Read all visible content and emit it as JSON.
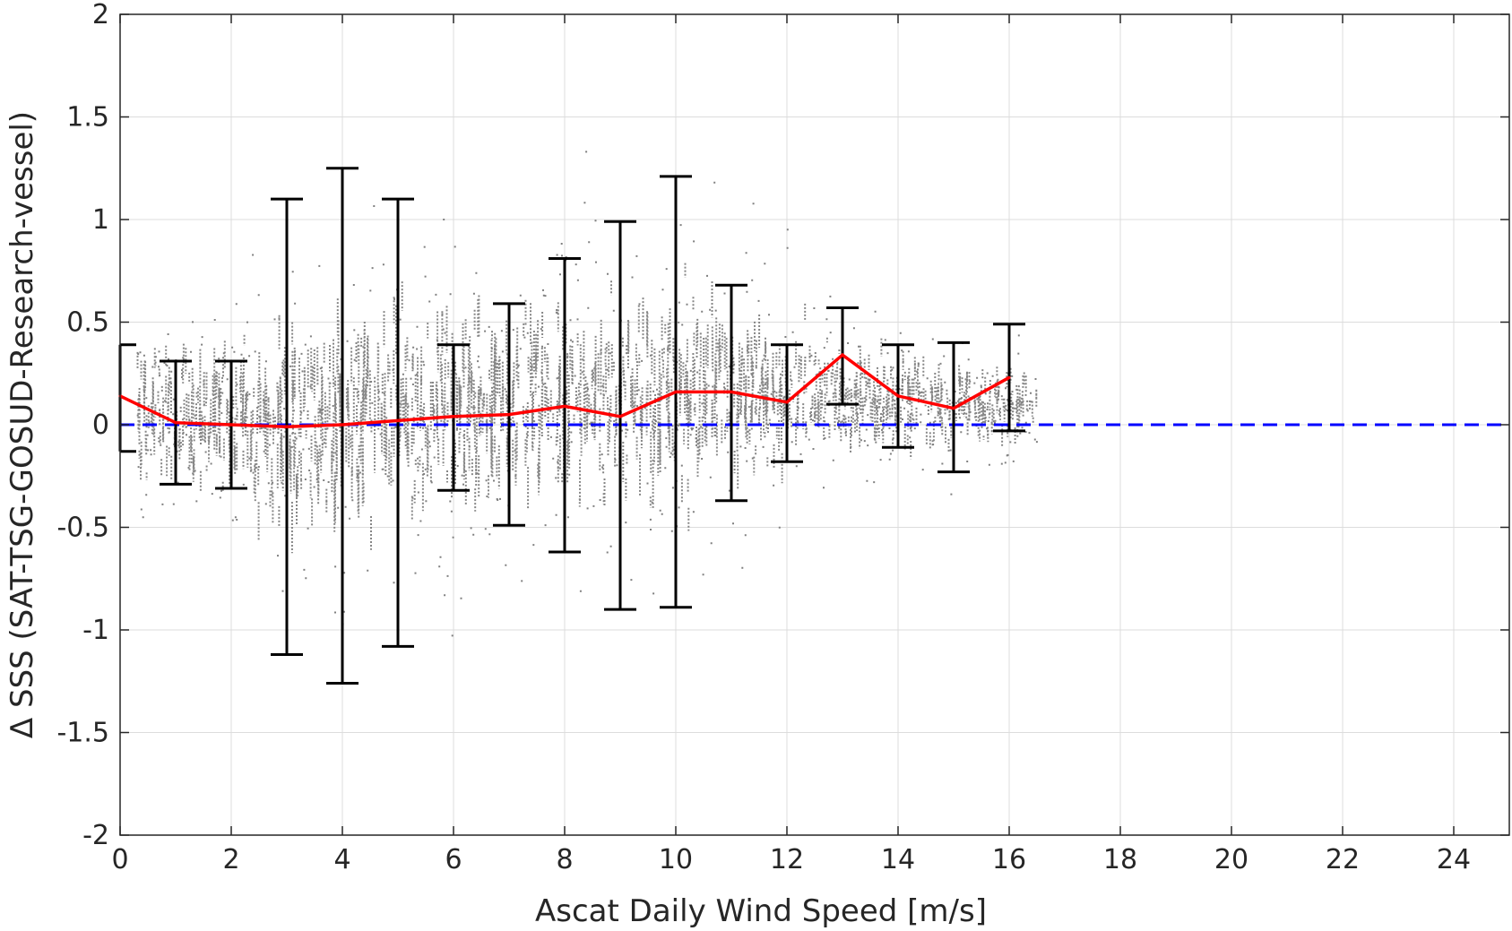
{
  "chart_data": {
    "type": "scatter",
    "title": "",
    "xlabel": "Ascat Daily Wind Speed [m/s]",
    "ylabel": "Δ SSS (SAT-TSG-GOSUD-Research-vessel)",
    "xlim": [
      0,
      25
    ],
    "ylim": [
      -2,
      2
    ],
    "xticks": [
      0,
      2,
      4,
      6,
      8,
      10,
      12,
      14,
      16,
      18,
      20,
      22,
      24
    ],
    "yticks": [
      -2,
      -1.5,
      -1,
      -0.5,
      0,
      0.5,
      1,
      1.5,
      2
    ],
    "grid": true,
    "scatter_cloud": {
      "x_range": [
        0.3,
        16.5
      ],
      "color": "#808080",
      "centers": [
        0.1,
        0.05,
        0.02,
        0.0,
        0.02,
        0.05,
        0.08,
        0.1,
        0.12,
        0.13,
        0.15,
        0.16,
        0.16,
        0.14,
        0.12,
        0.1,
        0.08
      ],
      "spreads": [
        0.25,
        0.25,
        0.3,
        0.4,
        0.42,
        0.42,
        0.38,
        0.35,
        0.38,
        0.4,
        0.38,
        0.32,
        0.25,
        0.2,
        0.18,
        0.16,
        0.14
      ]
    },
    "series": [
      {
        "type": "line",
        "color": "#ff0000",
        "x": [
          0,
          1,
          2,
          3,
          4,
          5,
          6,
          7,
          8,
          9,
          10,
          11,
          12,
          13,
          14,
          15,
          16
        ],
        "y": [
          0.14,
          0.01,
          0.0,
          -0.01,
          0.0,
          0.02,
          0.04,
          0.05,
          0.09,
          0.04,
          0.16,
          0.16,
          0.11,
          0.34,
          0.14,
          0.08,
          0.23
        ]
      },
      {
        "type": "errorbar",
        "color": "#000000",
        "x": [
          0,
          1,
          2,
          3,
          4,
          5,
          6,
          7,
          8,
          9,
          10,
          11,
          12,
          13,
          14,
          15,
          16
        ],
        "lower": [
          -0.13,
          -0.29,
          -0.31,
          -1.12,
          -1.26,
          -1.08,
          -0.32,
          -0.49,
          -0.62,
          -0.9,
          -0.89,
          -0.37,
          -0.18,
          0.1,
          -0.11,
          -0.23,
          -0.03
        ],
        "upper": [
          0.39,
          0.31,
          0.31,
          1.1,
          1.25,
          1.1,
          0.39,
          0.59,
          0.81,
          0.99,
          1.21,
          0.68,
          0.39,
          0.57,
          0.39,
          0.4,
          0.49
        ]
      },
      {
        "type": "reference-line",
        "color": "#0000ff",
        "style": "dashed",
        "y": 0
      }
    ]
  }
}
